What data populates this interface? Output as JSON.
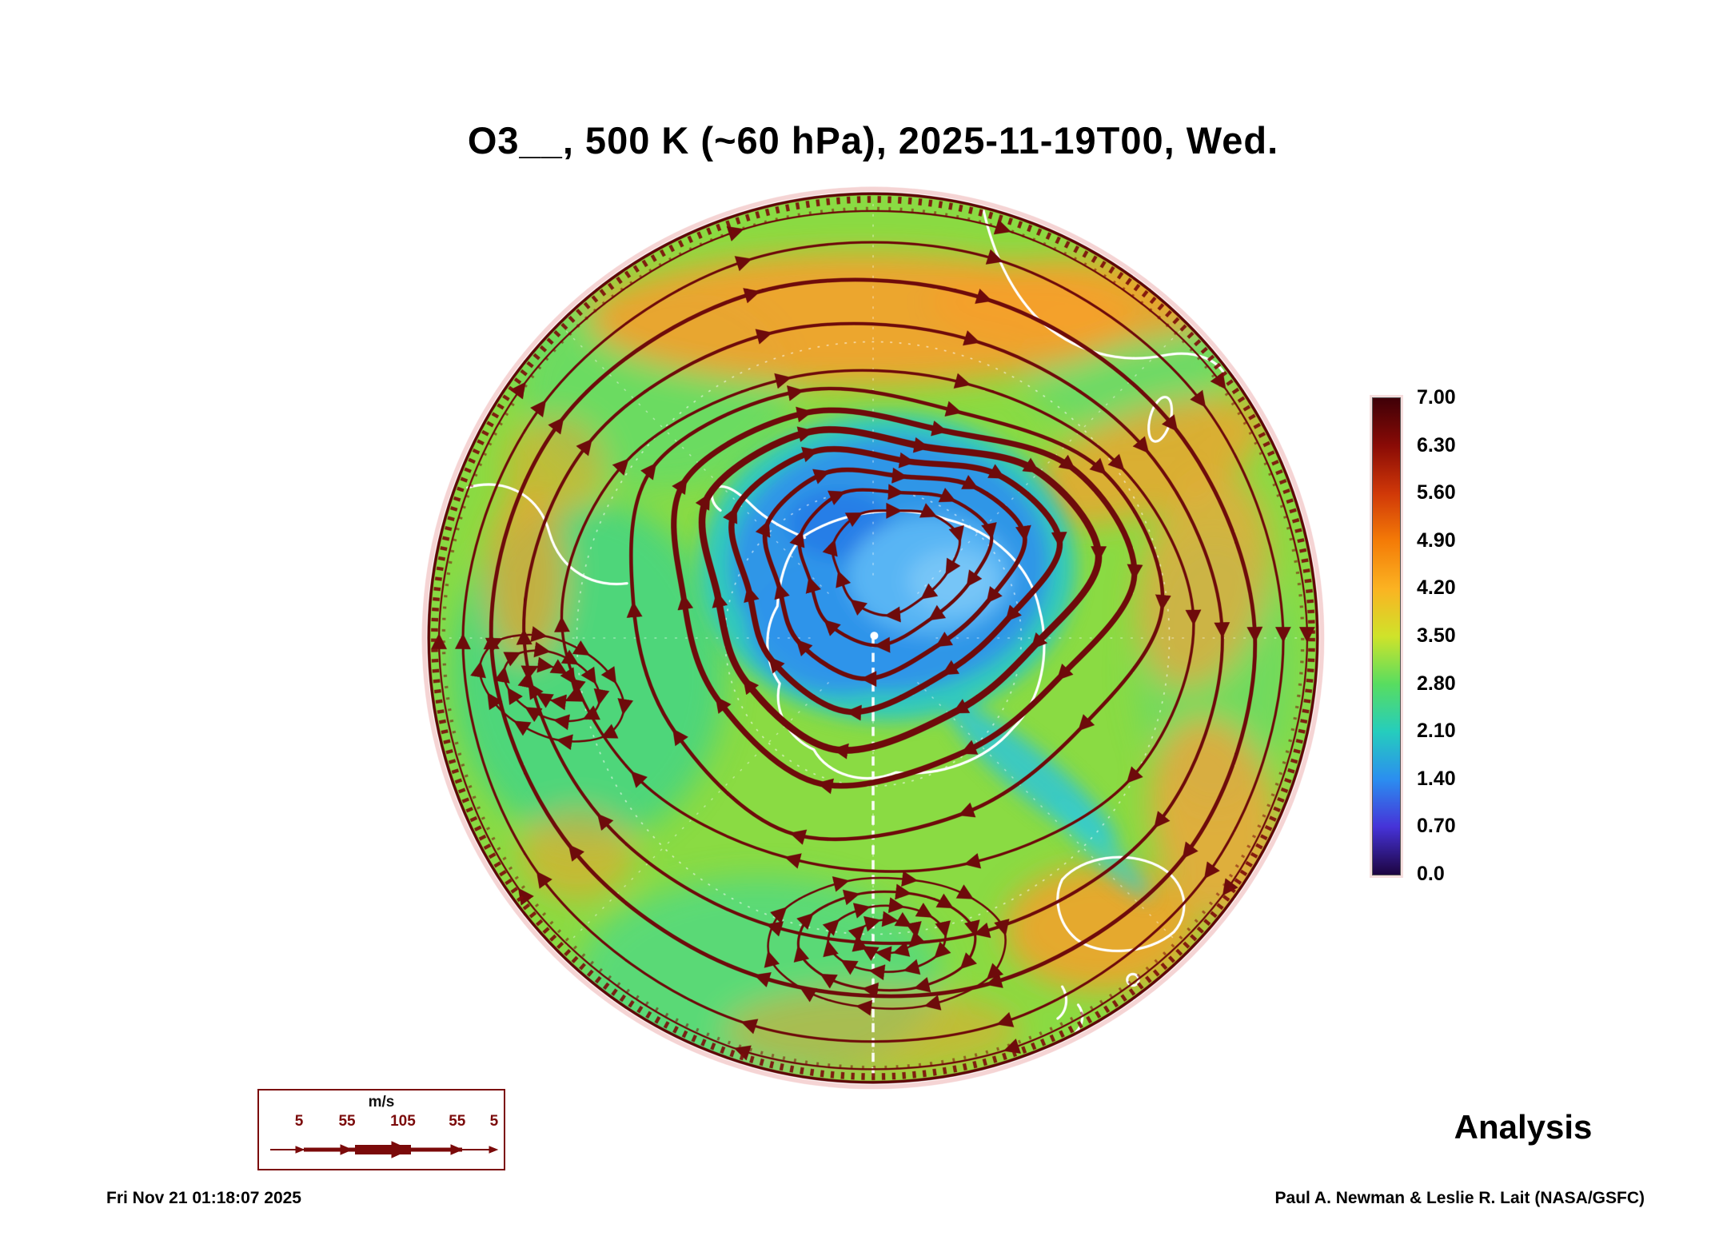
{
  "title": "O3__, 500 K (~60 hPa), 2025-11-19T00, Wed.",
  "annotation": {
    "analysis_label": "Analysis"
  },
  "footer": {
    "timestamp": "Fri Nov 21 01:18:07 2025",
    "credit": "Paul A. Newman & Leslie R. Lait (NASA/GSFC)"
  },
  "colorbar": {
    "ticks": [
      "7.00",
      "6.30",
      "5.60",
      "4.90",
      "4.20",
      "3.50",
      "2.80",
      "2.10",
      "1.40",
      "0.70",
      "0.0"
    ]
  },
  "wind_legend": {
    "units_label": "m/s",
    "values": [
      "5",
      "55",
      "105",
      "55",
      "5"
    ]
  },
  "colors": {
    "streamline": "#6E0B0B",
    "coastline": "#ffffff",
    "wind_legend_accent": "#7B0A0A",
    "colormap_top_to_bottom": [
      "#3f0007",
      "#8a0b06",
      "#d03808",
      "#f47b07",
      "#fbb322",
      "#cfe32a",
      "#58dd60",
      "#25cdbd",
      "#2b8ef0",
      "#4633d8",
      "#1d0440"
    ]
  },
  "chart_data": {
    "type": "heatmap",
    "subtype": "south_polar_stereographic_map",
    "title": "O3__, 500 K (~60 hPa), 2025-11-19T00, Wed.",
    "variable": "O3",
    "theta_level": "500 K",
    "pressure_level_approx": "~60 hPa",
    "valid_time": "2025-11-19T00 (Wed)",
    "analysis_type": "Analysis",
    "colorbar": {
      "min": 0.0,
      "max": 7.0,
      "tick_interval": 0.7,
      "ticks": [
        7.0,
        6.3,
        5.6,
        4.9,
        4.2,
        3.5,
        2.8,
        2.1,
        1.4,
        0.7,
        0.0
      ],
      "position": "right"
    },
    "wind_speed_legend_ms": [
      5,
      55,
      105,
      55,
      5
    ],
    "overlays": [
      "wind streamlines with arrowheads",
      "white coastlines",
      "dashed white graticule",
      "pole marker dot"
    ],
    "map_features": [
      "polar vortex of low O3 (approx 1.4-2.8) centered near the pole over Antarctica, light-blue core offset toward upper right",
      "cyan low-O3 filament trailing from vortex toward lower right",
      "thick dark-red streamline jet ringing the vortex edge",
      "mid-latitude field mostly 3.5-4.2 (green) with 4.9-5.6 (orange) patches near top, right, left and bottom-right",
      "closed streamline eddies at left-center and bottom-center of the map",
      "dense dark-red streamline arrows crowding the circular map rim"
    ]
  }
}
